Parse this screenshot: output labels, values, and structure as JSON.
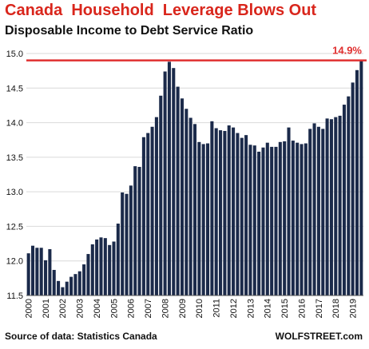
{
  "header": {
    "title": "Canada  Household  Leverage Blows Out",
    "subtitle": "Disposable Income to Debt Service Ratio"
  },
  "footer": {
    "source": "Source of data: Statistics Canada",
    "brand": "WOLFSTREET.com"
  },
  "colors": {
    "title": "#d9261c",
    "bar": "#1b2a4a",
    "reference_line": "#e03030",
    "annotation": "#e03030"
  },
  "chart_data": {
    "type": "bar",
    "title": "Disposable Income to Debt Service Ratio",
    "xlabel": "",
    "ylabel": "",
    "ylim": [
      11.5,
      15.0
    ],
    "yticks": [
      "11.5",
      "12.0",
      "12.5",
      "13.0",
      "13.5",
      "14.0",
      "14.5",
      "15.0"
    ],
    "xtick_labels": [
      "2000",
      "2001",
      "2002",
      "2003",
      "2004",
      "2005",
      "2006",
      "2007",
      "2008",
      "2009",
      "2010",
      "2011",
      "2012",
      "2013",
      "2014",
      "2015",
      "2016",
      "2017",
      "2018",
      "2019"
    ],
    "grid": "horizontal",
    "reference_line": {
      "value": 14.9,
      "label": "14.9%"
    },
    "series": [
      {
        "values": [
          12.11,
          12.22,
          12.19,
          12.19,
          12.01,
          12.17,
          11.87,
          11.71,
          11.62,
          11.7,
          11.77,
          11.81,
          11.85,
          11.95,
          12.1,
          12.24,
          12.31,
          12.34,
          12.33,
          12.23,
          12.28,
          12.54,
          12.99,
          12.97,
          13.09,
          13.37,
          13.36,
          13.79,
          13.85,
          13.94,
          14.08,
          14.39,
          14.74,
          14.88,
          14.79,
          14.52,
          14.35,
          14.2,
          14.07,
          13.98,
          13.72,
          13.69,
          13.7,
          14.02,
          13.92,
          13.89,
          13.88,
          13.96,
          13.93,
          13.85,
          13.78,
          13.82,
          13.68,
          13.67,
          13.58,
          13.64,
          13.71,
          13.65,
          13.65,
          13.72,
          13.73,
          13.93,
          13.74,
          13.71,
          13.69,
          13.7,
          13.91,
          13.99,
          13.94,
          13.91,
          14.06,
          14.05,
          14.08,
          14.1,
          14.26,
          14.38,
          14.58,
          14.76,
          14.9
        ]
      }
    ]
  }
}
